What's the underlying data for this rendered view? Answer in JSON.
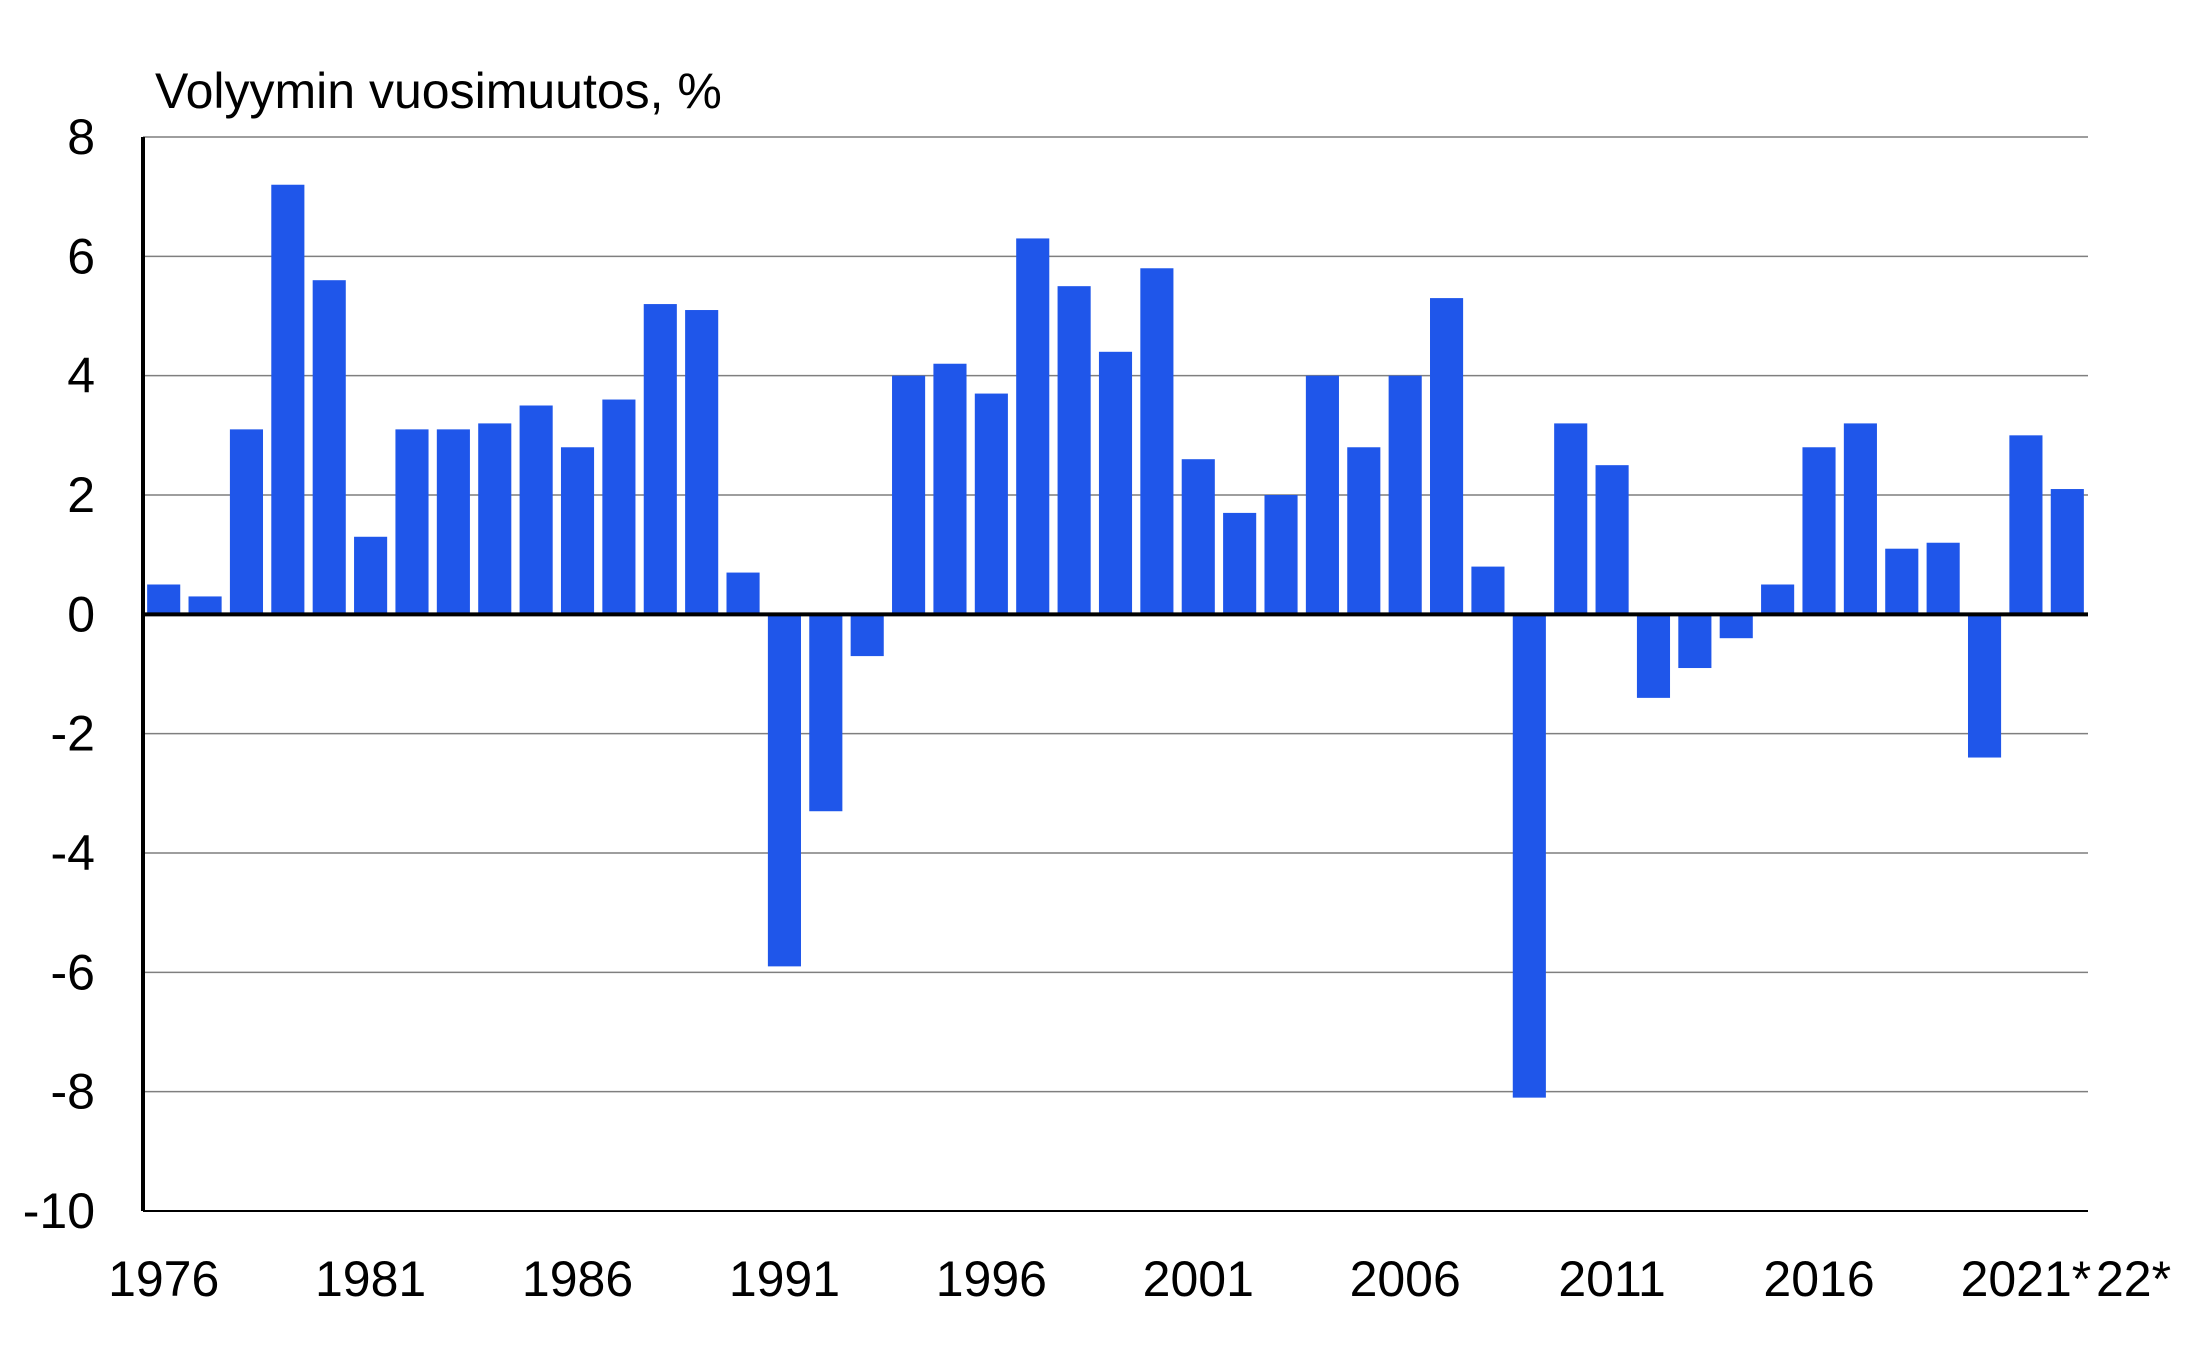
{
  "chart_data": {
    "type": "bar",
    "ylabel": "Volyymin vuosimuutos, %",
    "ylim": [
      -10,
      8
    ],
    "yticks": [
      8,
      6,
      4,
      2,
      0,
      -2,
      -4,
      -6,
      -8,
      -10
    ],
    "grid": true,
    "color": "#1f56ea",
    "categories": [
      "1976",
      "1977",
      "1978",
      "1979",
      "1980",
      "1981",
      "1982",
      "1983",
      "1984",
      "1985",
      "1986",
      "1987",
      "1988",
      "1989",
      "1990",
      "1991",
      "1992",
      "1993",
      "1994",
      "1995",
      "1996",
      "1997",
      "1998",
      "1999",
      "2000",
      "2001",
      "2002",
      "2003",
      "2004",
      "2005",
      "2006",
      "2007",
      "2008",
      "2009",
      "2010",
      "2011",
      "2012",
      "2013",
      "2014",
      "2015",
      "2016",
      "2017",
      "2018",
      "2019",
      "2020",
      "2021*",
      "22*"
    ],
    "values": [
      0.5,
      0.3,
      3.1,
      7.2,
      5.6,
      1.3,
      3.1,
      3.1,
      3.2,
      3.5,
      2.8,
      3.6,
      5.2,
      5.1,
      0.7,
      -5.9,
      -3.3,
      -0.7,
      4.0,
      4.2,
      3.7,
      6.3,
      5.5,
      4.4,
      5.8,
      2.6,
      1.7,
      2.0,
      4.0,
      2.8,
      4.0,
      5.3,
      0.8,
      -8.1,
      3.2,
      2.5,
      -1.4,
      -0.9,
      -0.4,
      0.5,
      2.8,
      3.2,
      1.1,
      1.2,
      -2.4,
      3.0,
      2.1
    ],
    "xtick_labels": [
      "1976",
      "1981",
      "1986",
      "1991",
      "1996",
      "2001",
      "2006",
      "2011",
      "2016",
      "2021*",
      "22*"
    ]
  }
}
